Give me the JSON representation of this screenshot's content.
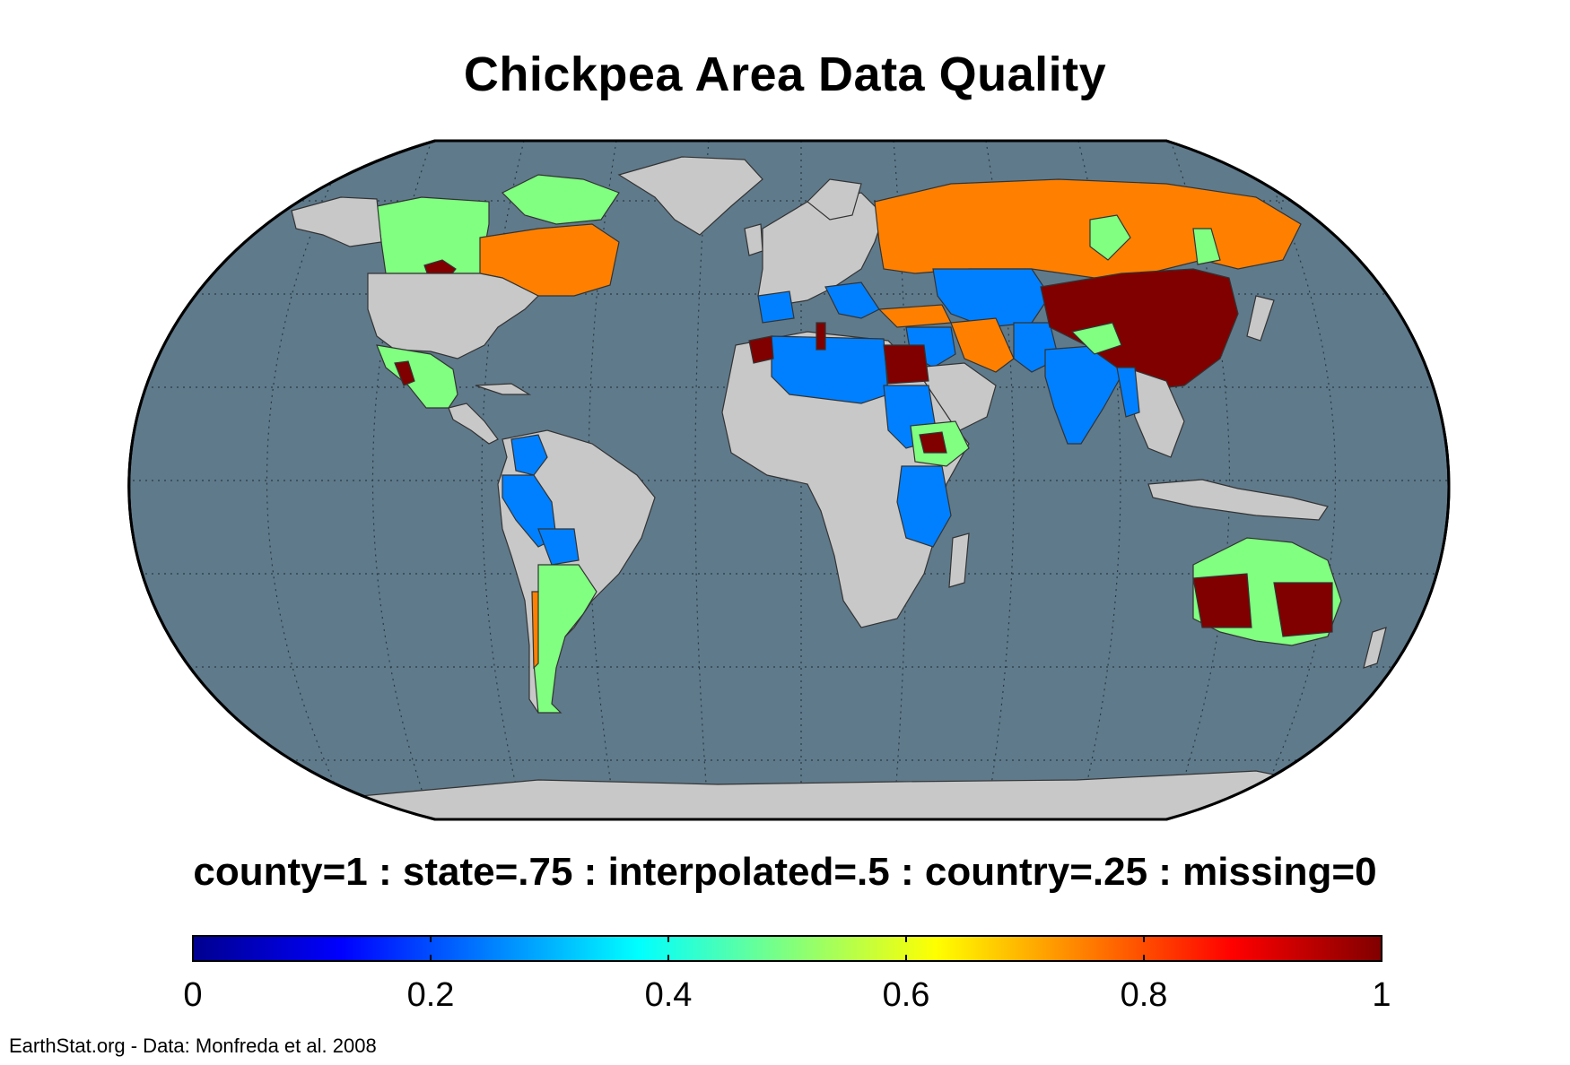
{
  "title": "Chickpea Area Data Quality",
  "legend": {
    "caption": "county=1 : state=.75 : interpolated=.5 : country=.25 : missing=0",
    "ticks": [
      "0",
      "0.2",
      "0.4",
      "0.6",
      "0.8",
      "1"
    ],
    "range": [
      0,
      1
    ],
    "colormap": "jet"
  },
  "footer": "EarthStat.org - Data: Monfreda et al. 2008",
  "colors": {
    "ocean": "#5f7a8b",
    "land_missing": "#c8c8c8",
    "county": "#800000",
    "state": "#ff8000",
    "interpolated": "#80ff80",
    "country": "#0080ff"
  },
  "regions": {
    "county": [
      "China",
      "Egypt",
      "Ethiopia",
      "Australia",
      "Tunisia",
      "Mexico",
      "Canada"
    ],
    "state": [
      "Russia",
      "Canada",
      "Turkey",
      "Iran",
      "Argentina",
      "Chile"
    ],
    "interpolated": [
      "Canada",
      "Mexico",
      "Argentina",
      "Australia",
      "Kazakhstan",
      "Mongolia",
      "Ethiopia"
    ],
    "country": [
      "India",
      "Pakistan",
      "Central Asia",
      "North Africa",
      "Sudan",
      "East Africa",
      "Peru",
      "Bolivia",
      "Colombia",
      "Spain",
      "Italy",
      "Greece",
      "Syria",
      "Iraq",
      "Saudi Arabia",
      "Myanmar"
    ]
  }
}
